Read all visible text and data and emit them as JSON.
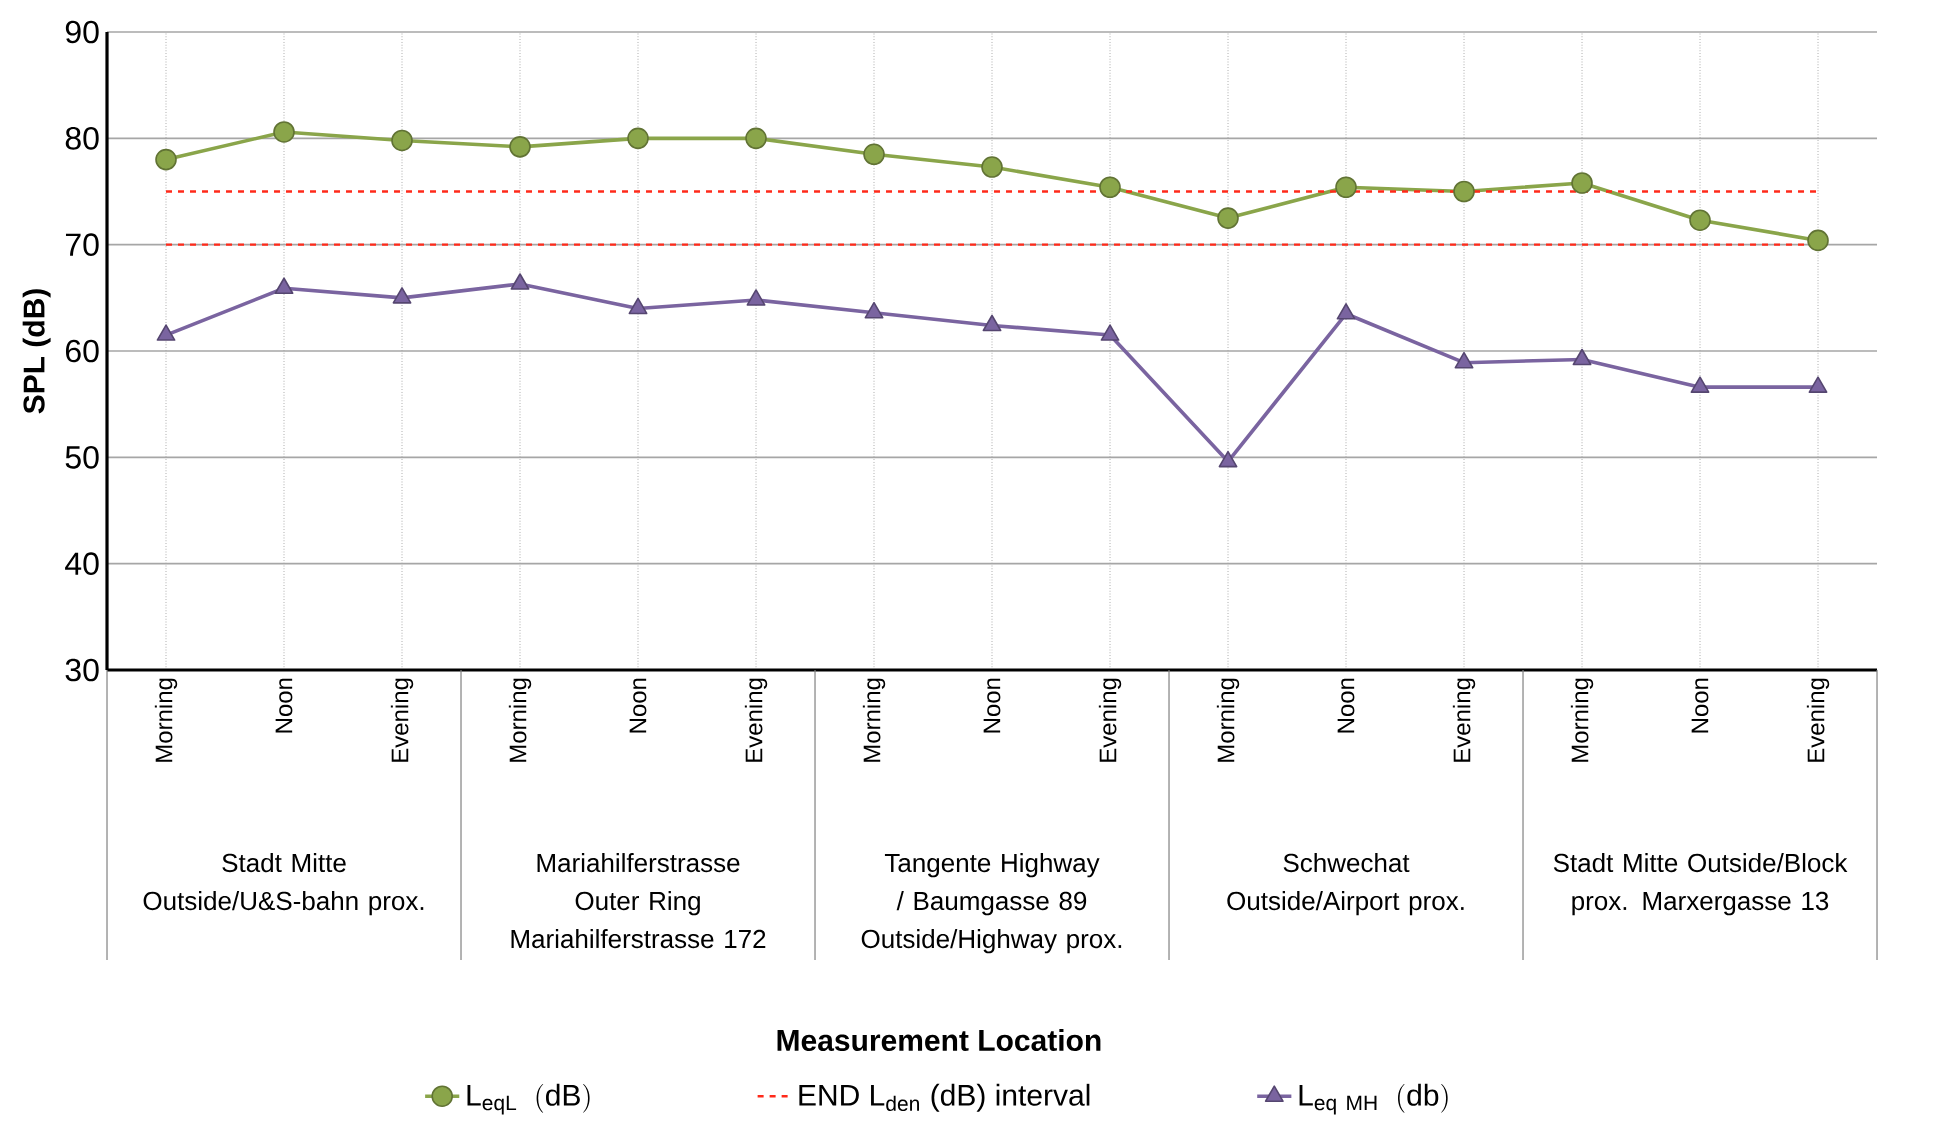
{
  "chart_data": {
    "type": "line",
    "ylabel": "SPL (dB)",
    "categories": [
      "Morning",
      "Noon",
      "Evening",
      "Morning",
      "Noon",
      "Evening",
      "Morning",
      "Noon",
      "Evening",
      "Morning",
      "Noon",
      "Evening",
      "Morning",
      "Noon",
      "Evening"
    ],
    "series": [
      {
        "name": "\\mathrm{L}_{\\mathrm{eqL}}\\;\\;\\mathrm{(dB)}",
        "color": "#8aa54a",
        "marker": "circle",
        "values": [
          78,
          80.6,
          79.8,
          79.2,
          80,
          80,
          78.5,
          77.3,
          75.4,
          72.5,
          75.4,
          75,
          75.8,
          72.3,
          70.4
        ]
      },
      {
        "name": "\\mathrm{L}_{\\mathrm{eq\\ MH}}\\;\\;\\mathrm{(db)}",
        "color": "#7a64a0",
        "marker": "triangle",
        "values": [
          61.5,
          65.9,
          65,
          66.3,
          64,
          64.8,
          63.6,
          62.4,
          61.5,
          49.6,
          63.5,
          58.9,
          59.2,
          56.6,
          56.6
        ]
      }
    ],
    "ref_lines": [
      {
        "axis": "y",
        "value": 75,
        "label": "END L$_{den}$ (dB) interval",
        "color": "#ff2a1a",
        "line_style": "dashed"
      },
      {
        "axis": "y",
        "value": 70,
        "label": null,
        "color": "#ff2a1a",
        "line_style": "dashed"
      }
    ],
    "annotations": [
      "Stadt Mitte Outside/U&S-bahn prox.",
      "Mariahilferstrasse Outer Ring Mariahilferstrasse 172",
      "Tangente Highway / Baumgasse 89 Outside/Highway prox.",
      "Schwechat Outside/Airport prox.",
      "Stadt Mitte Outside/Block prox. Marxergasse 13",
      "Measurement Location"
    ],
    "ylim": [
      30,
      90
    ],
    "yticks": [
      30,
      40,
      50,
      60,
      70,
      80,
      90
    ],
    "grid": true,
    "legend": "bottom"
  }
}
